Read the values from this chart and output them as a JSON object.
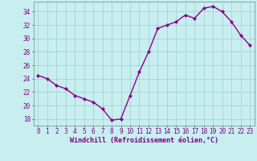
{
  "x": [
    0,
    1,
    2,
    3,
    4,
    5,
    6,
    7,
    8,
    9,
    10,
    11,
    12,
    13,
    14,
    15,
    16,
    17,
    18,
    19,
    20,
    21,
    22,
    23
  ],
  "y": [
    24.5,
    24.0,
    23.0,
    22.5,
    21.5,
    21.0,
    20.5,
    19.5,
    17.8,
    18.0,
    21.5,
    25.0,
    28.0,
    31.5,
    32.0,
    32.5,
    33.5,
    33.0,
    34.5,
    34.8,
    34.0,
    32.5,
    30.5,
    29.0
  ],
  "line_color": "#8B008B",
  "marker": "D",
  "marker_size": 2,
  "bg_color": "#c8eef0",
  "grid_color": "#9ecfcc",
  "xlabel": "Windchill (Refroidissement éolien,°C)",
  "ylabel": "",
  "ylim": [
    17.0,
    35.5
  ],
  "xlim": [
    -0.5,
    23.5
  ],
  "yticks": [
    18,
    20,
    22,
    24,
    26,
    28,
    30,
    32,
    34
  ],
  "xticks": [
    0,
    1,
    2,
    3,
    4,
    5,
    6,
    7,
    8,
    9,
    10,
    11,
    12,
    13,
    14,
    15,
    16,
    17,
    18,
    19,
    20,
    21,
    22,
    23
  ],
  "font_color": "#800080",
  "linewidth": 1.0,
  "tick_fontsize": 5.5,
  "xlabel_fontsize": 6.0
}
